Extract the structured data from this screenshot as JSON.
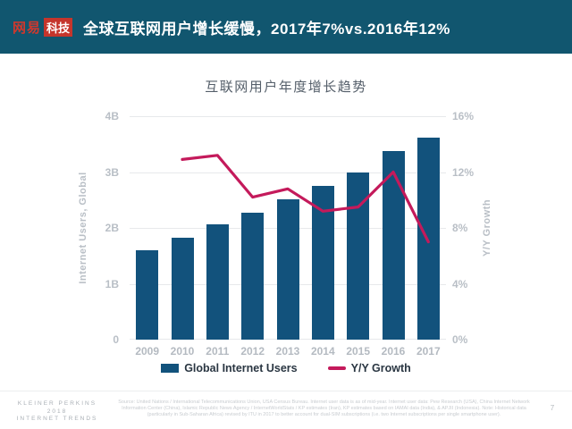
{
  "header": {
    "logo": {
      "brand": "网易",
      "sub": "科技"
    },
    "title": "全球互联网用户增长缓慢，2017年7%vs.2016年12%"
  },
  "chart_data": {
    "type": "bar",
    "title": "互联网用户年度增长趋势",
    "categories": [
      "2009",
      "2010",
      "2011",
      "2012",
      "2013",
      "2014",
      "2015",
      "2016",
      "2017"
    ],
    "series": [
      {
        "name": "Global Internet Users",
        "type": "bar",
        "axis": "left",
        "unit": "B",
        "color": "#12527C",
        "values": [
          1.6,
          1.83,
          2.06,
          2.27,
          2.51,
          2.75,
          3.0,
          3.38,
          3.62
        ]
      },
      {
        "name": "Y/Y Growth",
        "type": "line",
        "axis": "right",
        "unit": "%",
        "color": "#C41A5B",
        "x": [
          "2010",
          "2011",
          "2012",
          "2013",
          "2014",
          "2015",
          "2016",
          "2017"
        ],
        "values": [
          12.9,
          13.2,
          10.2,
          10.8,
          9.2,
          9.5,
          12.0,
          7.0
        ]
      }
    ],
    "left_axis": {
      "label": "Internet Users, Global",
      "min": 0,
      "max": 4,
      "ticks": [
        "4B",
        "3B",
        "2B",
        "1B",
        "0"
      ]
    },
    "right_axis": {
      "label": "Y/Y Growth",
      "min": 0,
      "max": 16,
      "ticks": [
        "16%",
        "12%",
        "8%",
        "4%",
        "0%"
      ]
    },
    "grid": true,
    "legend_position": "bottom"
  },
  "footer": {
    "brand_lines": [
      "KLEINER PERKINS",
      "2018",
      "INTERNET TRENDS"
    ],
    "source": "Source: United Nations / International Telecommunications Union, USA Census Bureau. Internet user data is as of mid-year. Internet user data: Pew Research (USA), China Internet Network Information Center (China), Islamic Republic News Agency / InternetWorldStats / KP estimates (Iran), KP estimates based on IAMAI data (India), & APJII (Indonesia). Note: Historical data (particularly in Sub-Saharan Africa) revised by ITU in 2017 to better account for dual-SIM subscriptions (i.e. two Internet subscriptions per single smartphone user).",
    "page_number": "7"
  },
  "colors": {
    "header_bg": "#11566F",
    "logo_red": "#C5352C",
    "bar": "#12527C",
    "line": "#C41A5B",
    "grid": "#E7E9EB",
    "axis_text": "#B9BFC6"
  }
}
